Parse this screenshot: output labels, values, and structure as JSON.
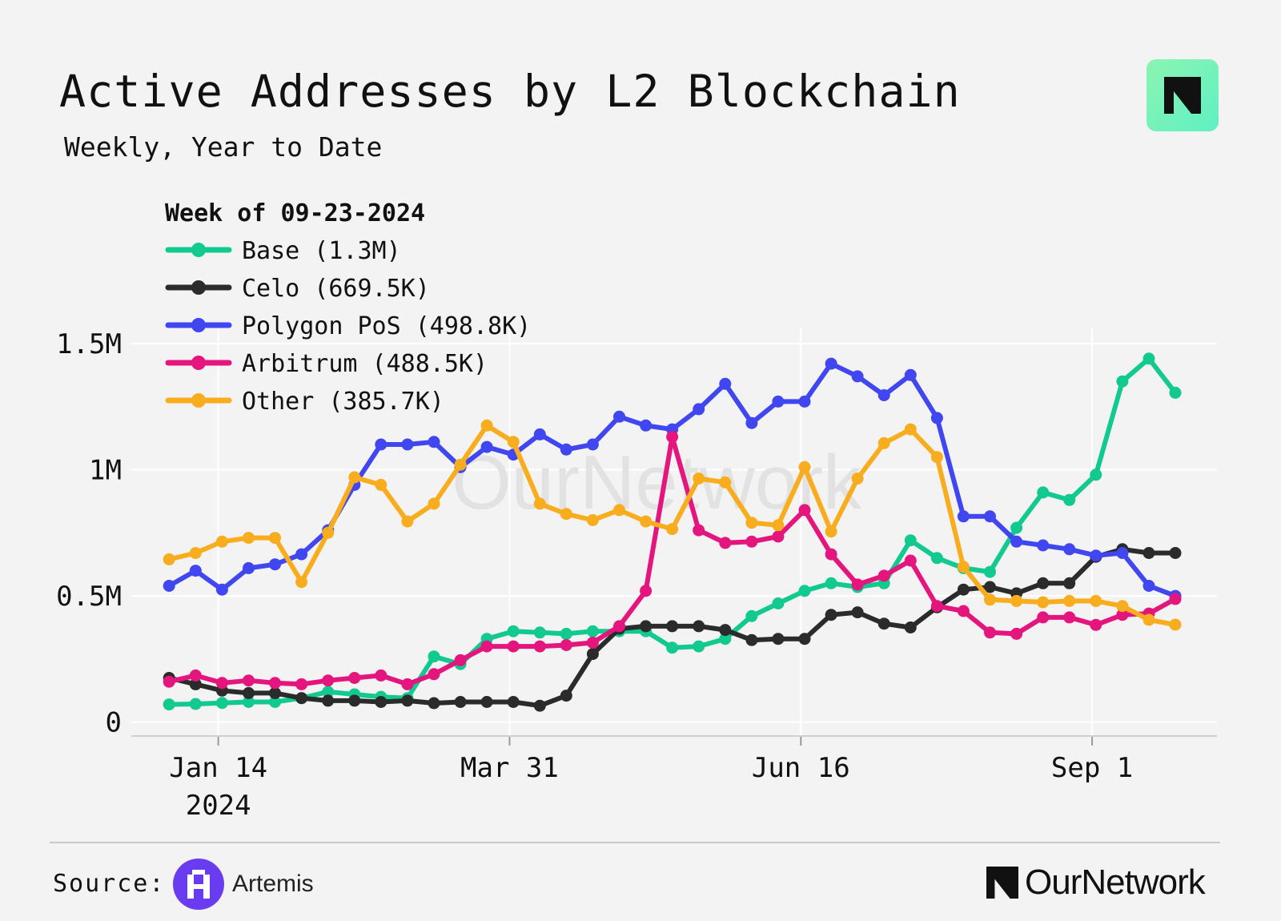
{
  "header": {
    "title": "Active Addresses by L2 Blockchain",
    "subtitle": "Weekly, Year to Date"
  },
  "footer": {
    "source_label": "Source:",
    "source_name": "Artemis",
    "brand_name": "OurNetwork",
    "watermark": "OurNetwork"
  },
  "colors": {
    "base": "#12c990",
    "celo": "#2b2b2b",
    "polygon": "#4046f0",
    "arbitrum": "#e5157e",
    "other": "#f8ad1e",
    "grid": "#ffffff",
    "background": "#f3f3f3"
  },
  "chart_data": {
    "type": "line",
    "title": "Active Addresses by L2 Blockchain",
    "subtitle": "Weekly, Year to Date",
    "legend_title": "Week of 09-23-2024",
    "legend_position": "top-left",
    "xlabel": "",
    "ylabel": "",
    "x_start_date": "2024-01-01",
    "x_interval_days": 7,
    "xlim_days": [
      -10,
      277
    ],
    "x_ticks": [
      {
        "day": 13,
        "label": "Jan 14",
        "sublabel": "2024"
      },
      {
        "day": 90,
        "label": "Mar 31",
        "sublabel": ""
      },
      {
        "day": 167,
        "label": "Jun 16",
        "sublabel": ""
      },
      {
        "day": 244,
        "label": "Sep 1",
        "sublabel": ""
      }
    ],
    "y_ticks": [
      {
        "value": 0,
        "label": "0"
      },
      {
        "value": 500000,
        "label": "0.5M"
      },
      {
        "value": 1000000,
        "label": "1M"
      },
      {
        "value": 1500000,
        "label": "1.5M"
      }
    ],
    "ylim": [
      -55000,
      1560000
    ],
    "grid": true,
    "series": [
      {
        "name": "Base",
        "legend_label": "Base (1.3M)",
        "color": "#12c990",
        "values": [
          70000,
          72000,
          76000,
          80000,
          80000,
          95000,
          120000,
          110000,
          100000,
          95000,
          260000,
          230000,
          330000,
          360000,
          355000,
          350000,
          360000,
          360000,
          360000,
          295000,
          300000,
          330000,
          420000,
          470000,
          520000,
          550000,
          535000,
          550000,
          720000,
          650000,
          610000,
          595000,
          770000,
          910000,
          880000,
          980000,
          1350000,
          1440000,
          1305000
        ]
      },
      {
        "name": "Celo",
        "legend_label": "Celo (669.5K)",
        "color": "#2b2b2b",
        "values": [
          175000,
          150000,
          125000,
          115000,
          115000,
          95000,
          85000,
          85000,
          80000,
          85000,
          75000,
          80000,
          80000,
          80000,
          65000,
          105000,
          270000,
          370000,
          380000,
          380000,
          380000,
          365000,
          325000,
          330000,
          330000,
          425000,
          435000,
          390000,
          375000,
          455000,
          525000,
          535000,
          510000,
          550000,
          550000,
          655000,
          685000,
          670000,
          670000
        ]
      },
      {
        "name": "Polygon PoS",
        "legend_label": "Polygon PoS (498.8K)",
        "color": "#4046f0",
        "values": [
          540000,
          600000,
          525000,
          610000,
          625000,
          665000,
          760000,
          940000,
          1100000,
          1100000,
          1110000,
          1010000,
          1090000,
          1060000,
          1140000,
          1080000,
          1100000,
          1210000,
          1175000,
          1160000,
          1240000,
          1340000,
          1185000,
          1270000,
          1270000,
          1420000,
          1370000,
          1295000,
          1375000,
          1205000,
          815000,
          815000,
          715000,
          700000,
          685000,
          660000,
          670000,
          540000,
          500000
        ]
      },
      {
        "name": "Arbitrum",
        "legend_label": "Arbitrum (488.5K)",
        "color": "#e5157e",
        "values": [
          160000,
          185000,
          155000,
          165000,
          155000,
          150000,
          165000,
          175000,
          185000,
          150000,
          190000,
          245000,
          300000,
          300000,
          300000,
          305000,
          315000,
          380000,
          520000,
          1130000,
          760000,
          710000,
          715000,
          735000,
          840000,
          665000,
          545000,
          580000,
          640000,
          460000,
          440000,
          355000,
          350000,
          415000,
          415000,
          385000,
          425000,
          430000,
          488000
        ]
      },
      {
        "name": "Other",
        "legend_label": "Other (385.7K)",
        "color": "#f8ad1e",
        "values": [
          645000,
          670000,
          715000,
          730000,
          730000,
          555000,
          750000,
          970000,
          940000,
          795000,
          865000,
          1020000,
          1175000,
          1110000,
          865000,
          825000,
          800000,
          840000,
          795000,
          765000,
          965000,
          950000,
          790000,
          780000,
          1010000,
          755000,
          965000,
          1105000,
          1160000,
          1050000,
          615000,
          485000,
          480000,
          475000,
          480000,
          480000,
          460000,
          405000,
          386000
        ]
      }
    ]
  }
}
